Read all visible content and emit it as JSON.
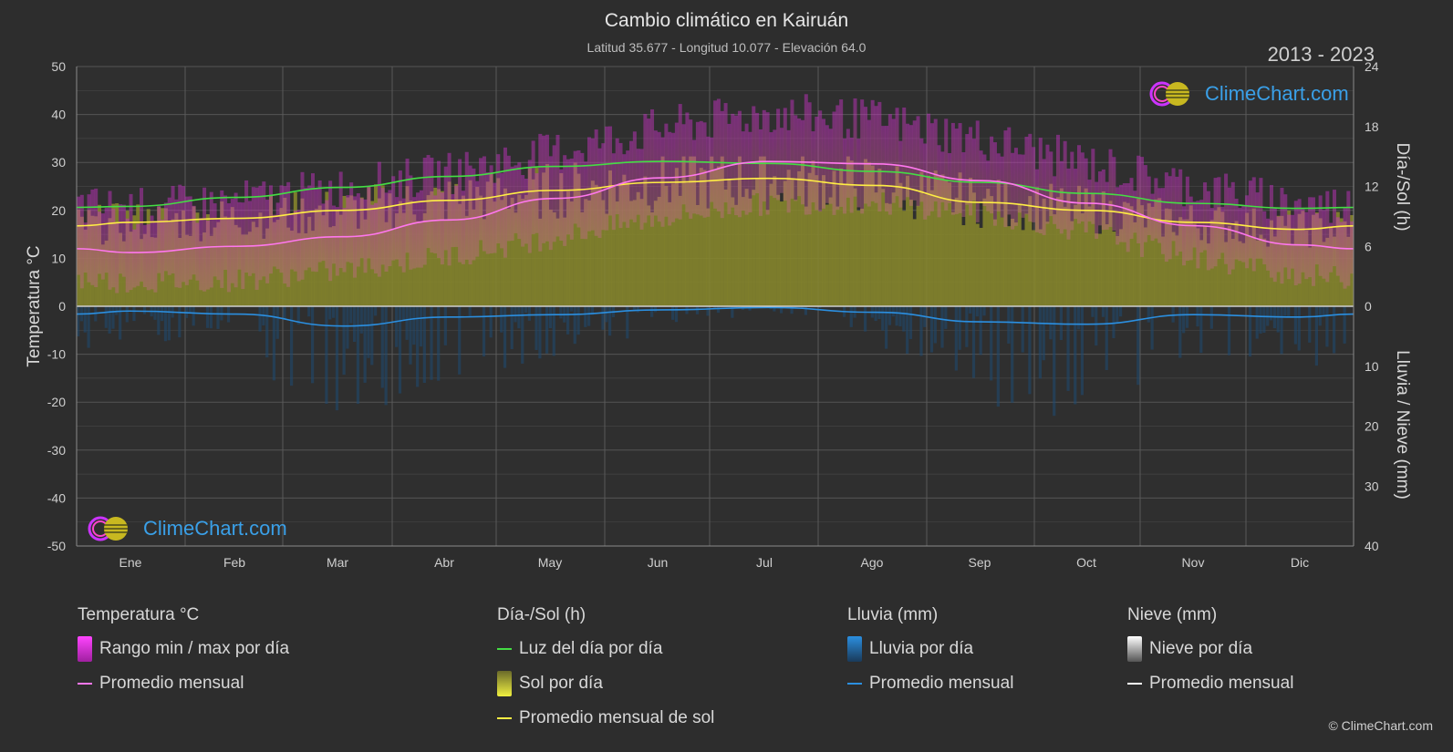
{
  "header": {
    "title": "Cambio climático en Kairuán",
    "subtitle": "Latitud 35.677 - Longitud 10.077 - Elevación 64.0",
    "years": "2013 - 2023"
  },
  "branding": {
    "logo_text": "ClimeChart.com",
    "copyright": "© ClimeChart.com"
  },
  "legend": {
    "groups": [
      {
        "heading": "Temperatura °C",
        "items": [
          {
            "label": "Rango min / max por día",
            "swatch": "box",
            "color": "#e040e0"
          },
          {
            "label": "Promedio mensual",
            "swatch": "line",
            "color": "#ff77ee"
          }
        ]
      },
      {
        "heading": "Día-/Sol (h)",
        "items": [
          {
            "label": "Luz del día por día",
            "swatch": "line",
            "color": "#44dd44"
          },
          {
            "label": "Sol por día",
            "swatch": "box",
            "color": "#dede3a"
          },
          {
            "label": "Promedio mensual de sol",
            "swatch": "line",
            "color": "#ffee44"
          }
        ]
      },
      {
        "heading": "Lluvia (mm)",
        "items": [
          {
            "label": "Lluvia por día",
            "swatch": "box",
            "color": "#2b8fe0"
          },
          {
            "label": "Promedio mensual",
            "swatch": "line",
            "color": "#2b8fe0"
          }
        ]
      },
      {
        "heading": "Nieve (mm)",
        "items": [
          {
            "label": "Nieve por día",
            "swatch": "box",
            "color": "#dddddd"
          },
          {
            "label": "Promedio mensual",
            "swatch": "line",
            "color": "#ffffff"
          }
        ]
      }
    ]
  },
  "chart_data": {
    "type": "area",
    "categories": [
      "Ene",
      "Feb",
      "Mar",
      "Abr",
      "May",
      "Jun",
      "Jul",
      "Ago",
      "Sep",
      "Oct",
      "Nov",
      "Dic"
    ],
    "y_left": {
      "label": "Temperatura °C",
      "range": [
        -50,
        50
      ],
      "ticks": [
        50,
        40,
        30,
        20,
        10,
        0,
        -10,
        -20,
        -30,
        -40,
        -50
      ]
    },
    "y_right_top": {
      "label": "Día-/Sol (h)",
      "range": [
        0,
        24
      ],
      "ticks": [
        24,
        18,
        12,
        6,
        0
      ]
    },
    "y_right_bottom": {
      "label": "Lluvia / Nieve (mm)",
      "range": [
        0,
        40
      ],
      "ticks": [
        0,
        10,
        20,
        30,
        40
      ]
    },
    "grid": true,
    "series": [
      {
        "name": "Promedio mensual",
        "unit": "°C",
        "color": "#ff77ee",
        "values": [
          11.2,
          12.5,
          14.5,
          18.0,
          22.5,
          26.8,
          30.2,
          29.7,
          26.2,
          21.5,
          16.8,
          12.8
        ]
      },
      {
        "name": "Luz del día por día",
        "unit": "h",
        "color": "#44dd44",
        "values": [
          10.0,
          10.9,
          11.9,
          13.0,
          14.0,
          14.5,
          14.3,
          13.5,
          12.4,
          11.3,
          10.3,
          9.8
        ]
      },
      {
        "name": "Promedio mensual de sol",
        "unit": "h",
        "color": "#ffee44",
        "values": [
          8.4,
          8.8,
          9.6,
          10.6,
          11.6,
          12.4,
          12.8,
          12.1,
          10.4,
          9.6,
          8.4,
          7.7
        ]
      },
      {
        "name": "Promedio mensual",
        "unit": "mm lluvia",
        "color": "#2b8fe0",
        "values": [
          0.8,
          1.3,
          3.3,
          1.8,
          1.4,
          0.6,
          0.2,
          1.0,
          2.6,
          3.0,
          1.4,
          1.8
        ]
      }
    ],
    "range_series": {
      "name": "Rango min / max por día",
      "unit": "°C",
      "min": [
        5,
        5.5,
        7.5,
        10.5,
        14.5,
        18.5,
        21.5,
        21.5,
        19.5,
        15.5,
        10,
        6.5
      ],
      "max": [
        18.5,
        20,
        23,
        26,
        30.5,
        35.5,
        38.5,
        37,
        33,
        28,
        23,
        19.5
      ]
    }
  }
}
